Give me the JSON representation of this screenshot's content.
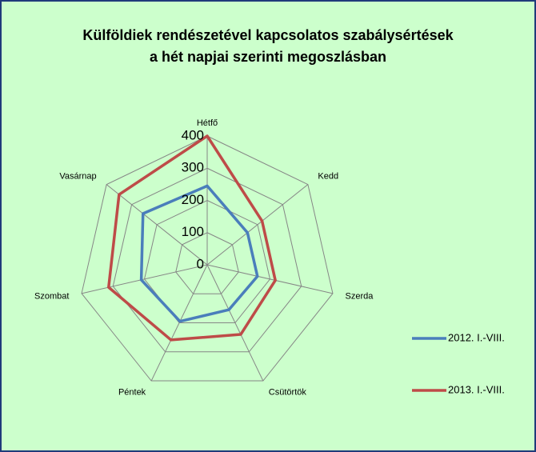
{
  "chart_data": {
    "type": "radar",
    "title": [
      "Külföldiek rendészetével kapcsolatos szabálysértések",
      "a hét napjai szerinti megoszlásban"
    ],
    "categories": [
      "Hétfő",
      "Kedd",
      "Szerda",
      "Csütörtök",
      "Péntek",
      "Szombat",
      "Vasárnap"
    ],
    "series": [
      {
        "name": "2012. I.-VIII.",
        "color": "#4a7ebb",
        "values": [
          245,
          160,
          160,
          155,
          195,
          210,
          255
        ]
      },
      {
        "name": "2013. I.-VIII.",
        "color": "#be4b48",
        "values": [
          400,
          218,
          217,
          240,
          259,
          314,
          350
        ]
      }
    ],
    "ylim": [
      0,
      400
    ],
    "yticks": [
      0,
      100,
      200,
      300,
      400
    ],
    "grid": true,
    "legend": "right"
  }
}
